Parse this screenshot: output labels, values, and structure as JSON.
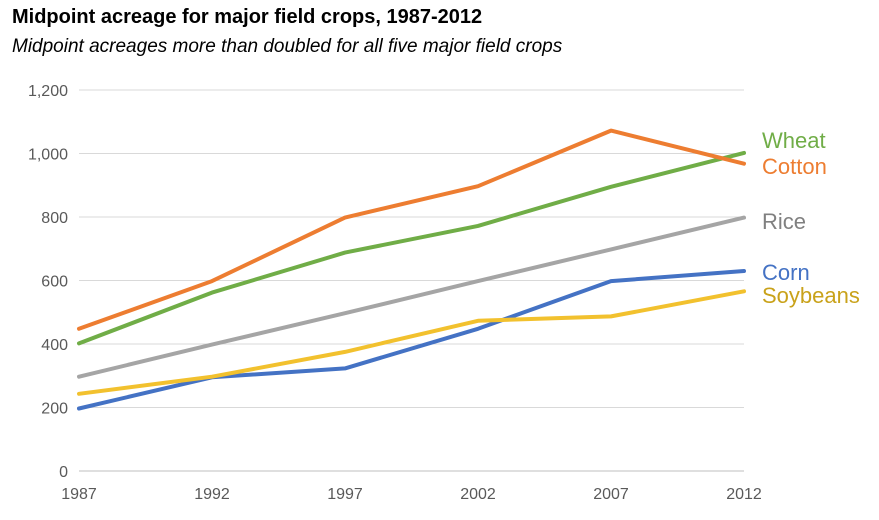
{
  "chart_data": {
    "type": "line",
    "title": "Midpoint acreage for major field crops, 1987-2012",
    "subtitle": "Midpoint acreages more than doubled for all five major field crops",
    "xlabel": "",
    "ylabel": "",
    "categories": [
      "1987",
      "1992",
      "1997",
      "2002",
      "2007",
      "2012"
    ],
    "ylim": [
      0,
      1200
    ],
    "yticks": [
      "0",
      "200",
      "400",
      "600",
      "800",
      "1,000",
      "1,200"
    ],
    "ytick_values": [
      0,
      200,
      400,
      600,
      800,
      1000,
      1200
    ],
    "grid": true,
    "legend": "direct labels at right end of lines",
    "series": [
      {
        "name": "Wheat",
        "color": "#70AD47",
        "label_color": "#70AD47",
        "values": [
          402,
          562,
          688,
          772,
          895,
          1002
        ]
      },
      {
        "name": "Cotton",
        "color": "#ED7D31",
        "label_color": "#ED7D31",
        "values": [
          448,
          598,
          798,
          897,
          1072,
          968
        ]
      },
      {
        "name": "Rice",
        "color": "#A5A5A5",
        "label_color": "#808080",
        "values": [
          297,
          398,
          497,
          598,
          698,
          798
        ]
      },
      {
        "name": "Corn",
        "color": "#4472C4",
        "label_color": "#4472C4",
        "values": [
          197,
          295,
          323,
          448,
          598,
          630
        ]
      },
      {
        "name": "Soybeans",
        "color": "#F2C12E",
        "label_color": "#C9A21A",
        "values": [
          243,
          297,
          375,
          473,
          487,
          566
        ]
      }
    ]
  }
}
